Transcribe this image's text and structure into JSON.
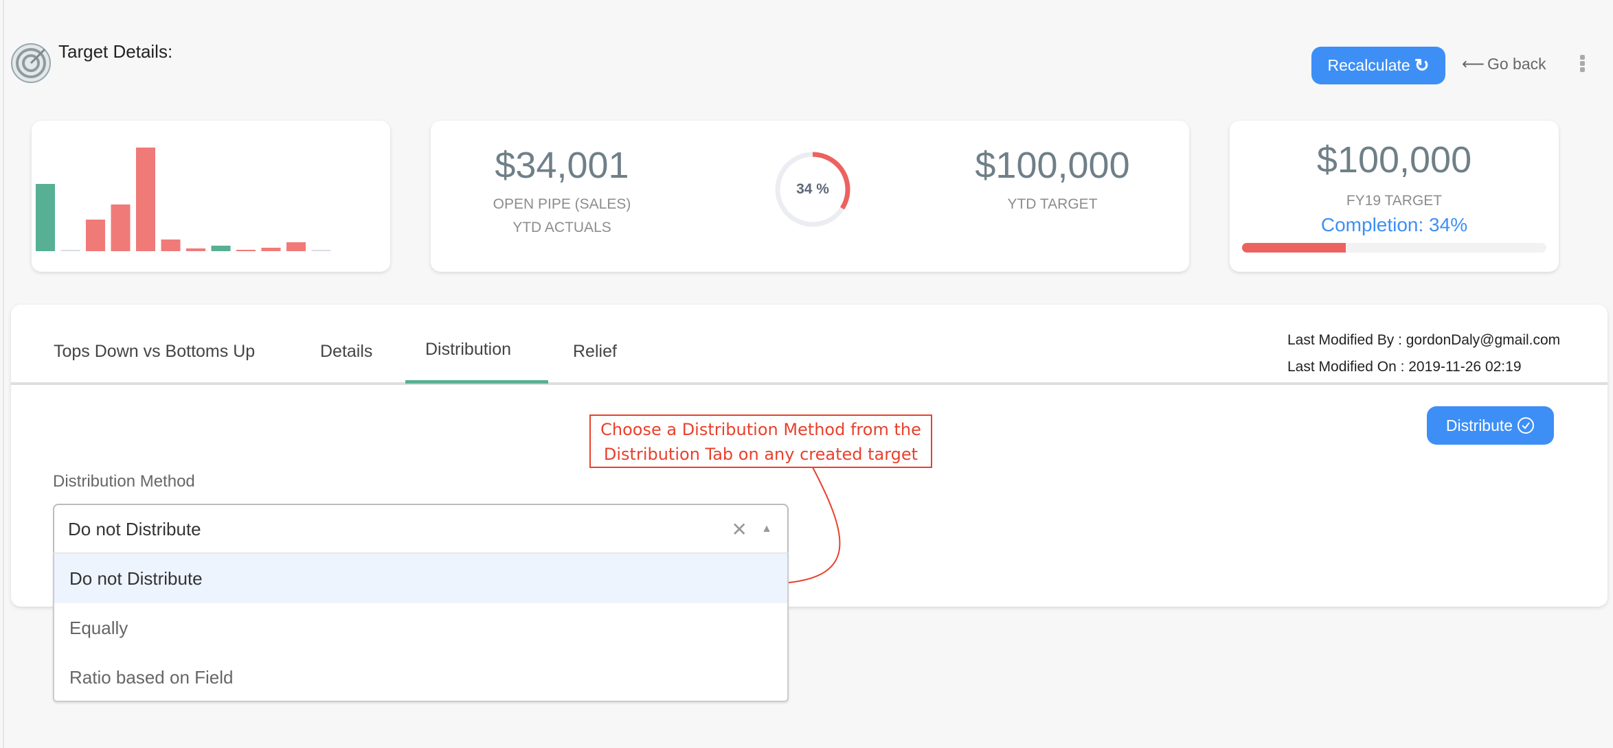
{
  "header": {
    "title": "Target Details:",
    "recalculate_label": "Recalculate",
    "go_back_label": "Go back",
    "go_back_arrow": "⟵"
  },
  "summary": {
    "open_pipe_value": "$34,001",
    "open_pipe_label": "OPEN PIPE (SALES)",
    "ytd_actuals_label": "YTD ACTUALS",
    "donut_percent_label": "34 %",
    "donut_percent": 34,
    "ytd_target_value": "$100,000",
    "ytd_target_label": "YTD TARGET",
    "fy_target_value": "$100,000",
    "fy_target_label": "FY19 TARGET",
    "completion_label": "Completion: 34%",
    "completion_percent": 34
  },
  "chart_data": {
    "type": "bar",
    "values": [
      98,
      1,
      46,
      68,
      151,
      17,
      4,
      8,
      2,
      5,
      13,
      1
    ],
    "colors": [
      "#57b094",
      "#d9dde6",
      "#f07a78",
      "#f07a78",
      "#f07a78",
      "#f07a78",
      "#f07a78",
      "#57b094",
      "#f07a78",
      "#f07a78",
      "#f07a78",
      "#d9dde6"
    ]
  },
  "tabs": [
    {
      "label": "Tops Down vs Bottoms Up"
    },
    {
      "label": "Details"
    },
    {
      "label": "Distribution",
      "active": true
    },
    {
      "label": "Relief"
    }
  ],
  "meta": {
    "modified_by": "Last Modified By : gordonDaly@gmail.com",
    "modified_on": "Last Modified On : 2019-11-26 02:19"
  },
  "distribute_label": "Distribute",
  "annotation": {
    "line1": "Choose a Distribution Method from the",
    "line2": "Distribution Tab on any created target"
  },
  "form": {
    "label": "Distribution Method",
    "selected": "Do not Distribute",
    "options": [
      "Do not Distribute",
      "Equally",
      "Ratio based on Field"
    ]
  },
  "colors": {
    "accent": "#3d8ff6",
    "green": "#57b094",
    "red": "#ec625e",
    "annotation": "#e8412c"
  }
}
